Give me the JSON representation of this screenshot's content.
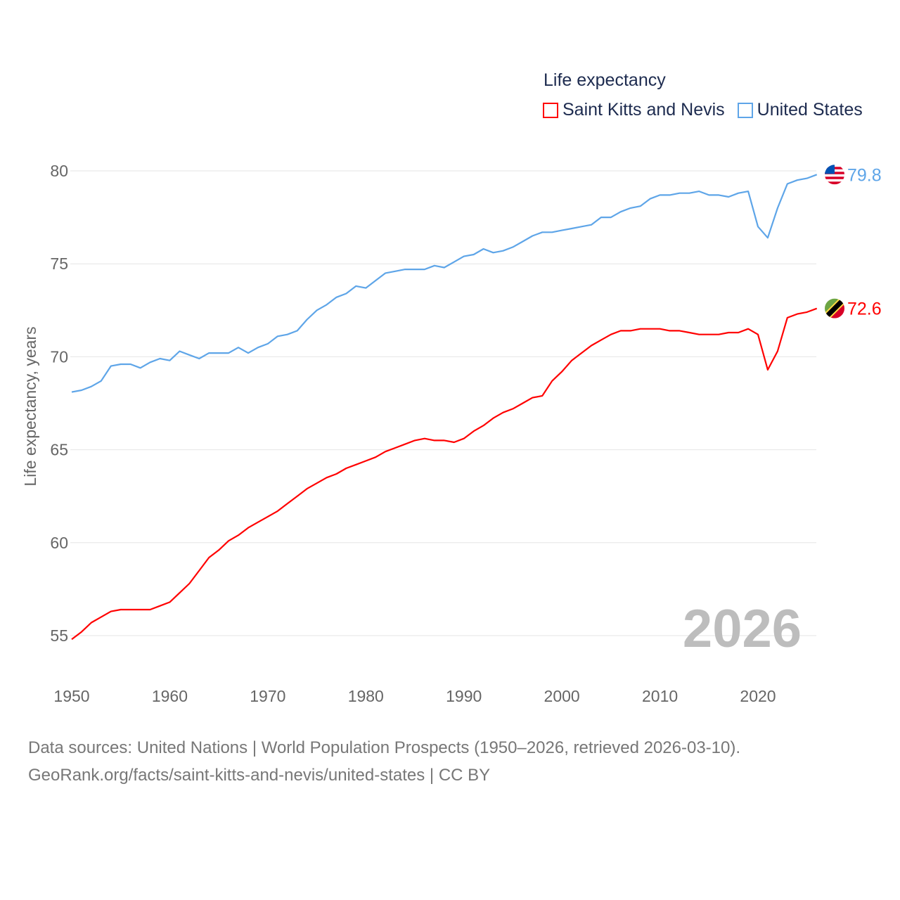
{
  "chart_data": {
    "type": "line",
    "title": "Life expectancy",
    "ylabel": "Life expectancy, years",
    "xlabel": "",
    "xlim": [
      1950,
      2026
    ],
    "ylim": [
      53.5,
      81.5
    ],
    "x_ticks": [
      "1950",
      "1960",
      "1970",
      "1980",
      "1990",
      "2000",
      "2010",
      "2020"
    ],
    "y_ticks": [
      "55",
      "60",
      "65",
      "70",
      "75",
      "80"
    ],
    "grid": true,
    "legend_position": "top-right",
    "year_watermark": "2026",
    "x": [
      1950,
      1951,
      1952,
      1953,
      1954,
      1955,
      1956,
      1957,
      1958,
      1959,
      1960,
      1961,
      1962,
      1963,
      1964,
      1965,
      1966,
      1967,
      1968,
      1969,
      1970,
      1971,
      1972,
      1973,
      1974,
      1975,
      1976,
      1977,
      1978,
      1979,
      1980,
      1981,
      1982,
      1983,
      1984,
      1985,
      1986,
      1987,
      1988,
      1989,
      1990,
      1991,
      1992,
      1993,
      1994,
      1995,
      1996,
      1997,
      1998,
      1999,
      2000,
      2001,
      2002,
      2003,
      2004,
      2005,
      2006,
      2007,
      2008,
      2009,
      2010,
      2011,
      2012,
      2013,
      2014,
      2015,
      2016,
      2017,
      2018,
      2019,
      2020,
      2021,
      2022,
      2023,
      2024,
      2025,
      2026
    ],
    "series": [
      {
        "name": "Saint Kitts and Nevis",
        "color": "#ff0000",
        "end_label": "72.6",
        "values": [
          54.8,
          55.2,
          55.7,
          56.0,
          56.3,
          56.4,
          56.4,
          56.4,
          56.4,
          56.6,
          56.8,
          57.3,
          57.8,
          58.5,
          59.2,
          59.6,
          60.1,
          60.4,
          60.8,
          61.1,
          61.4,
          61.7,
          62.1,
          62.5,
          62.9,
          63.2,
          63.5,
          63.7,
          64.0,
          64.2,
          64.4,
          64.6,
          64.9,
          65.1,
          65.3,
          65.5,
          65.6,
          65.5,
          65.5,
          65.4,
          65.6,
          66.0,
          66.3,
          66.7,
          67.0,
          67.2,
          67.5,
          67.8,
          67.9,
          68.7,
          69.2,
          69.8,
          70.2,
          70.6,
          70.9,
          71.2,
          71.4,
          71.4,
          71.5,
          71.5,
          71.5,
          71.4,
          71.4,
          71.3,
          71.2,
          71.2,
          71.2,
          71.3,
          71.3,
          71.5,
          71.2,
          69.3,
          70.3,
          72.1,
          72.3,
          72.4,
          72.6
        ]
      },
      {
        "name": "United States",
        "color": "#5ea5e8",
        "end_label": "79.8",
        "values": [
          68.1,
          68.2,
          68.4,
          68.7,
          69.5,
          69.6,
          69.6,
          69.4,
          69.7,
          69.9,
          69.8,
          70.3,
          70.1,
          69.9,
          70.2,
          70.2,
          70.2,
          70.5,
          70.2,
          70.5,
          70.7,
          71.1,
          71.2,
          71.4,
          72.0,
          72.5,
          72.8,
          73.2,
          73.4,
          73.8,
          73.7,
          74.1,
          74.5,
          74.6,
          74.7,
          74.7,
          74.7,
          74.9,
          74.8,
          75.1,
          75.4,
          75.5,
          75.8,
          75.6,
          75.7,
          75.9,
          76.2,
          76.5,
          76.7,
          76.7,
          76.8,
          76.9,
          77.0,
          77.1,
          77.5,
          77.5,
          77.8,
          78.0,
          78.1,
          78.5,
          78.7,
          78.7,
          78.8,
          78.8,
          78.9,
          78.7,
          78.7,
          78.6,
          78.8,
          78.9,
          77.0,
          76.4,
          78.0,
          79.3,
          79.5,
          79.6,
          79.8
        ]
      }
    ]
  },
  "source": {
    "line1": "Data sources: United Nations | World Population Prospects (1950–2026, retrieved 2026-03-10).",
    "line2": "GeoRank.org/facts/saint-kitts-and-nevis/united-states | CC BY"
  }
}
